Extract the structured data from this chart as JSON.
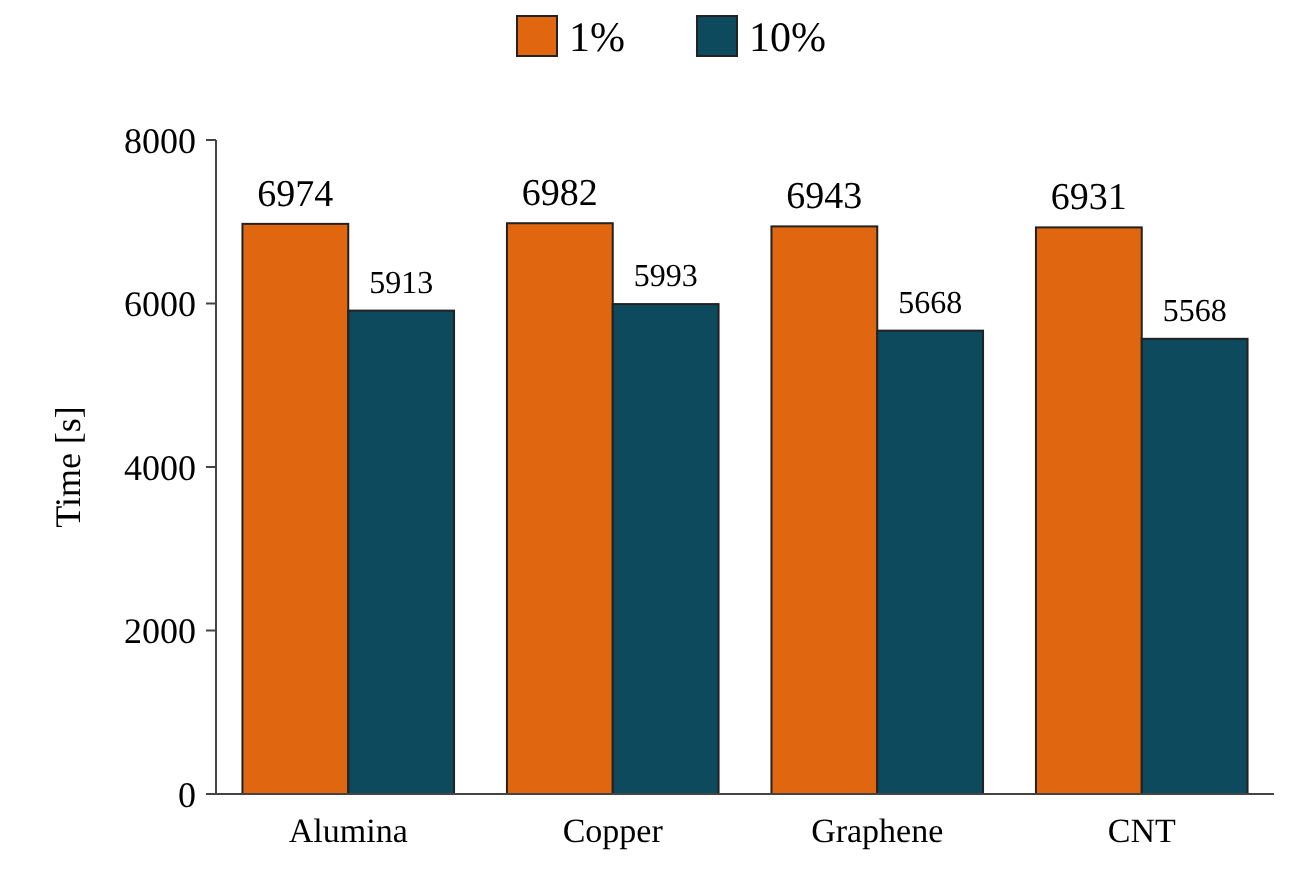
{
  "chart_data": {
    "type": "bar",
    "ylabel": "Time [s]",
    "categories": [
      "Alumina",
      "Copper",
      "Graphene",
      "CNT"
    ],
    "series": [
      {
        "name": "1%",
        "color": "#e06710",
        "values": [
          6974,
          6982,
          6943,
          6931
        ]
      },
      {
        "name": "10%",
        "color": "#0e4a5e",
        "values": [
          5913,
          5993,
          5668,
          5568
        ]
      }
    ],
    "ylim": [
      0,
      8000
    ],
    "yticks": [
      0,
      2000,
      4000,
      6000,
      8000
    ],
    "data_labels": true,
    "legend": "top",
    "grid": false
  }
}
